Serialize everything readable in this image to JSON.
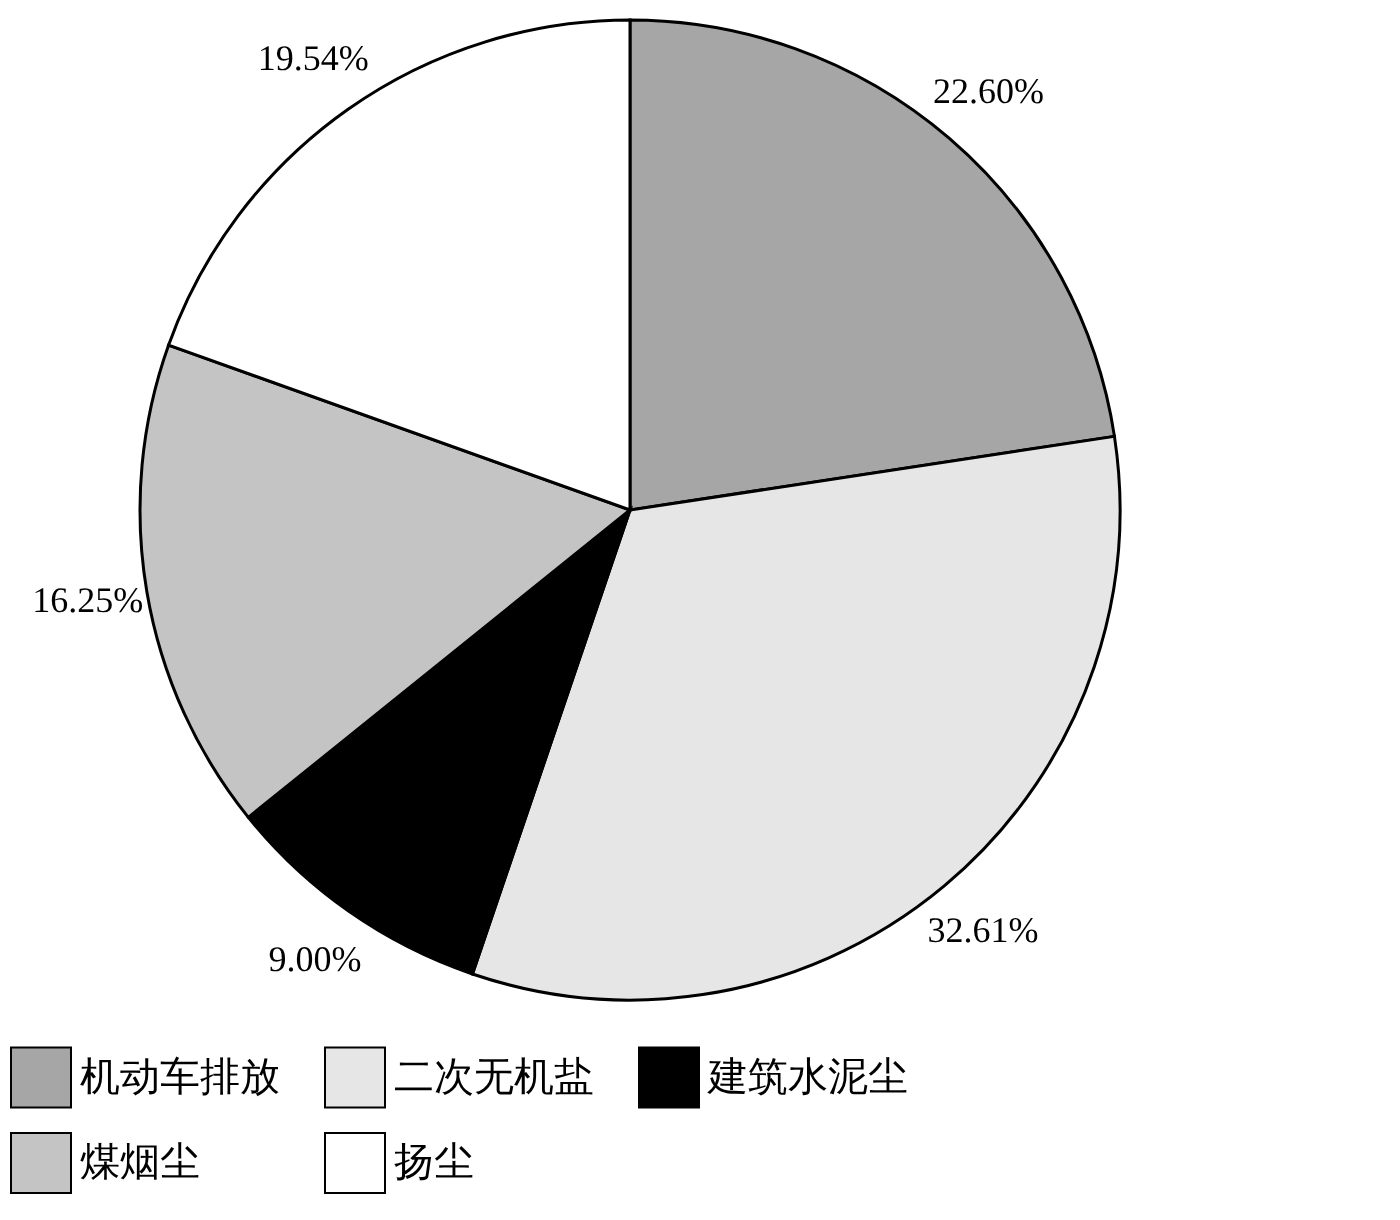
{
  "chart_data": {
    "type": "pie",
    "categories": [
      "机动车排放",
      "二次无机盐",
      "建筑水泥尘",
      "煤烟尘",
      "扬尘"
    ],
    "values": [
      22.6,
      32.61,
      9.0,
      16.25,
      19.54
    ],
    "value_labels": [
      "22.60%",
      "32.61%",
      "9.00%",
      "16.25%",
      "19.54%"
    ],
    "colors": [
      "#a6a6a6",
      "#e6e6e6",
      "#000000",
      "#c4c4c4",
      "#ffffff"
    ],
    "legend": "bottom"
  }
}
